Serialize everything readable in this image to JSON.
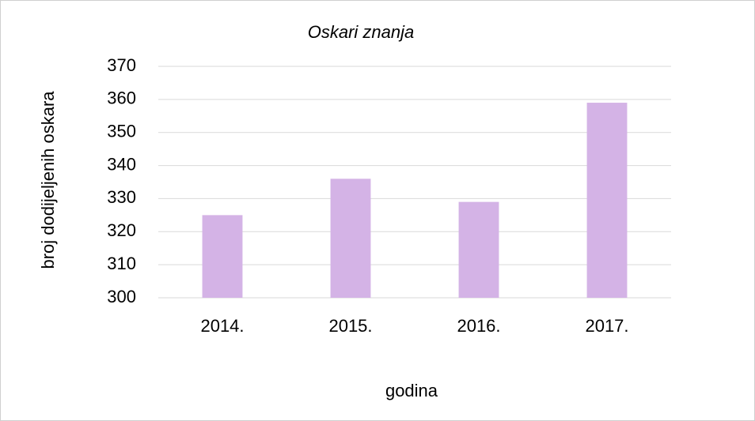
{
  "chart_data": {
    "type": "bar",
    "title": "Oskari znanja",
    "x_label": "godina",
    "y_label": "broj dodijeljenih oskara",
    "categories": [
      "2014.",
      "2015.",
      "2016.",
      "2017."
    ],
    "values": [
      325,
      336,
      329,
      359
    ],
    "color": "#d4b3e6",
    "ylim": [
      300,
      370
    ],
    "yticks": [
      300,
      310,
      320,
      330,
      340,
      350,
      360,
      370
    ],
    "grid": true
  }
}
